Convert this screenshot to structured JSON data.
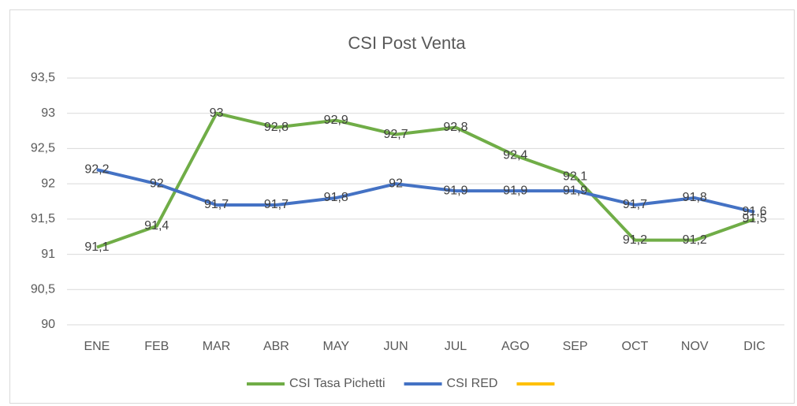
{
  "chart_data": {
    "type": "line",
    "title": "CSI Post Venta",
    "categories": [
      "ENE",
      "FEB",
      "MAR",
      "ABR",
      "MAY",
      "JUN",
      "JUL",
      "AGO",
      "SEP",
      "OCT",
      "NOV",
      "DIC"
    ],
    "series": [
      {
        "name": "CSI Tasa Pichetti",
        "color": "#70ad47",
        "values": [
          91.1,
          91.4,
          93,
          92.8,
          92.9,
          92.7,
          92.8,
          92.4,
          92.1,
          91.2,
          91.2,
          91.5
        ],
        "value_labels": [
          "91,1",
          "91,4",
          "93",
          "92,8",
          "92,9",
          "92,7",
          "92,8",
          "92,4",
          "92,1",
          "91,2",
          "91,2",
          "91,5"
        ]
      },
      {
        "name": "CSI RED",
        "color": "#4472c4",
        "values": [
          92.2,
          92,
          91.7,
          91.7,
          91.8,
          92,
          91.9,
          91.9,
          91.9,
          91.7,
          91.8,
          91.6
        ],
        "value_labels": [
          "92,2",
          "92",
          "91,7",
          "91,7",
          "91,8",
          "92",
          "91,9",
          "91,9",
          "91,9",
          "91,7",
          "91,8",
          "91,6"
        ]
      },
      {
        "color": "#ffc000",
        "values": [
          null,
          null,
          null,
          null,
          null,
          null,
          null,
          null,
          null,
          null,
          null,
          null
        ]
      }
    ],
    "ylim": [
      90,
      93.5
    ],
    "yticks": [
      90,
      {
        "value": 90.5,
        "label": "90,5"
      },
      91,
      {
        "value": 91.5,
        "label": "91,5"
      },
      92,
      {
        "value": 92.5,
        "label": "92,5"
      },
      93,
      {
        "value": 93.5,
        "label": "93,5"
      }
    ],
    "grid": true,
    "legend": "bottom"
  }
}
